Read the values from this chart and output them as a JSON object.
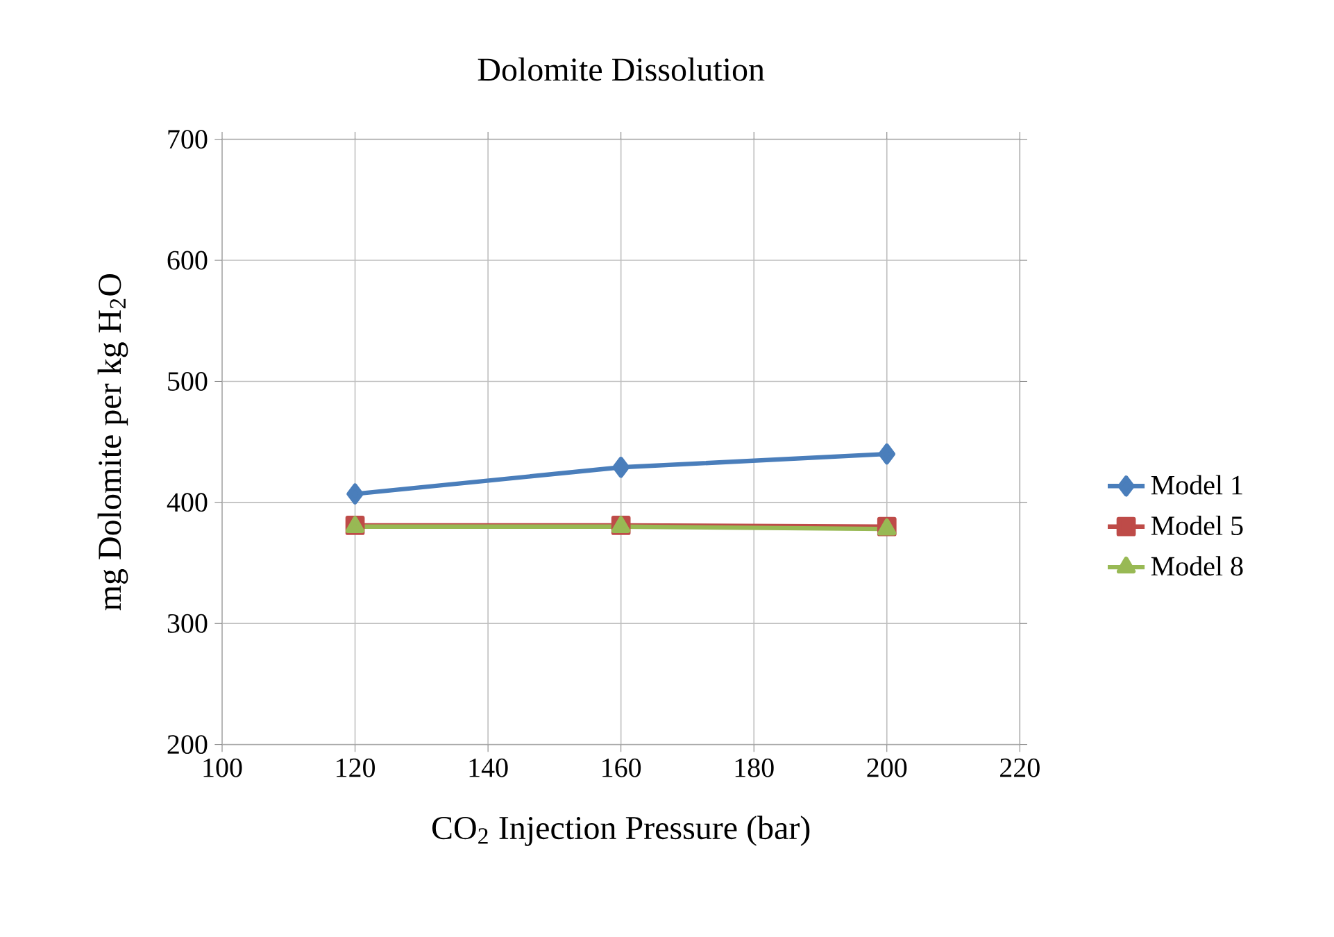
{
  "chart_data": {
    "type": "line",
    "title": "Dolomite Dissolution",
    "xlabel": "CO$_{2}$ Injection Pressure (bar)",
    "ylabel": "mg Dolomite per kg H$_{2}$O",
    "x": [
      120,
      160,
      200
    ],
    "series": [
      {
        "name": "Model 1",
        "color": "#4a7ebb",
        "marker": "diamond",
        "values": [
          407,
          429,
          440
        ]
      },
      {
        "name": "Model 5",
        "color": "#be4b48",
        "marker": "square",
        "values": [
          381,
          381,
          380
        ]
      },
      {
        "name": "Model 8",
        "color": "#98b954",
        "marker": "triangle",
        "values": [
          380,
          380,
          378
        ]
      }
    ],
    "xlim": [
      100,
      220
    ],
    "xticks": [
      100,
      120,
      140,
      160,
      180,
      200,
      220
    ],
    "ylim": [
      200,
      700
    ],
    "yticks": [
      200,
      300,
      400,
      500,
      600,
      700
    ],
    "grid": true,
    "legend": "right"
  }
}
